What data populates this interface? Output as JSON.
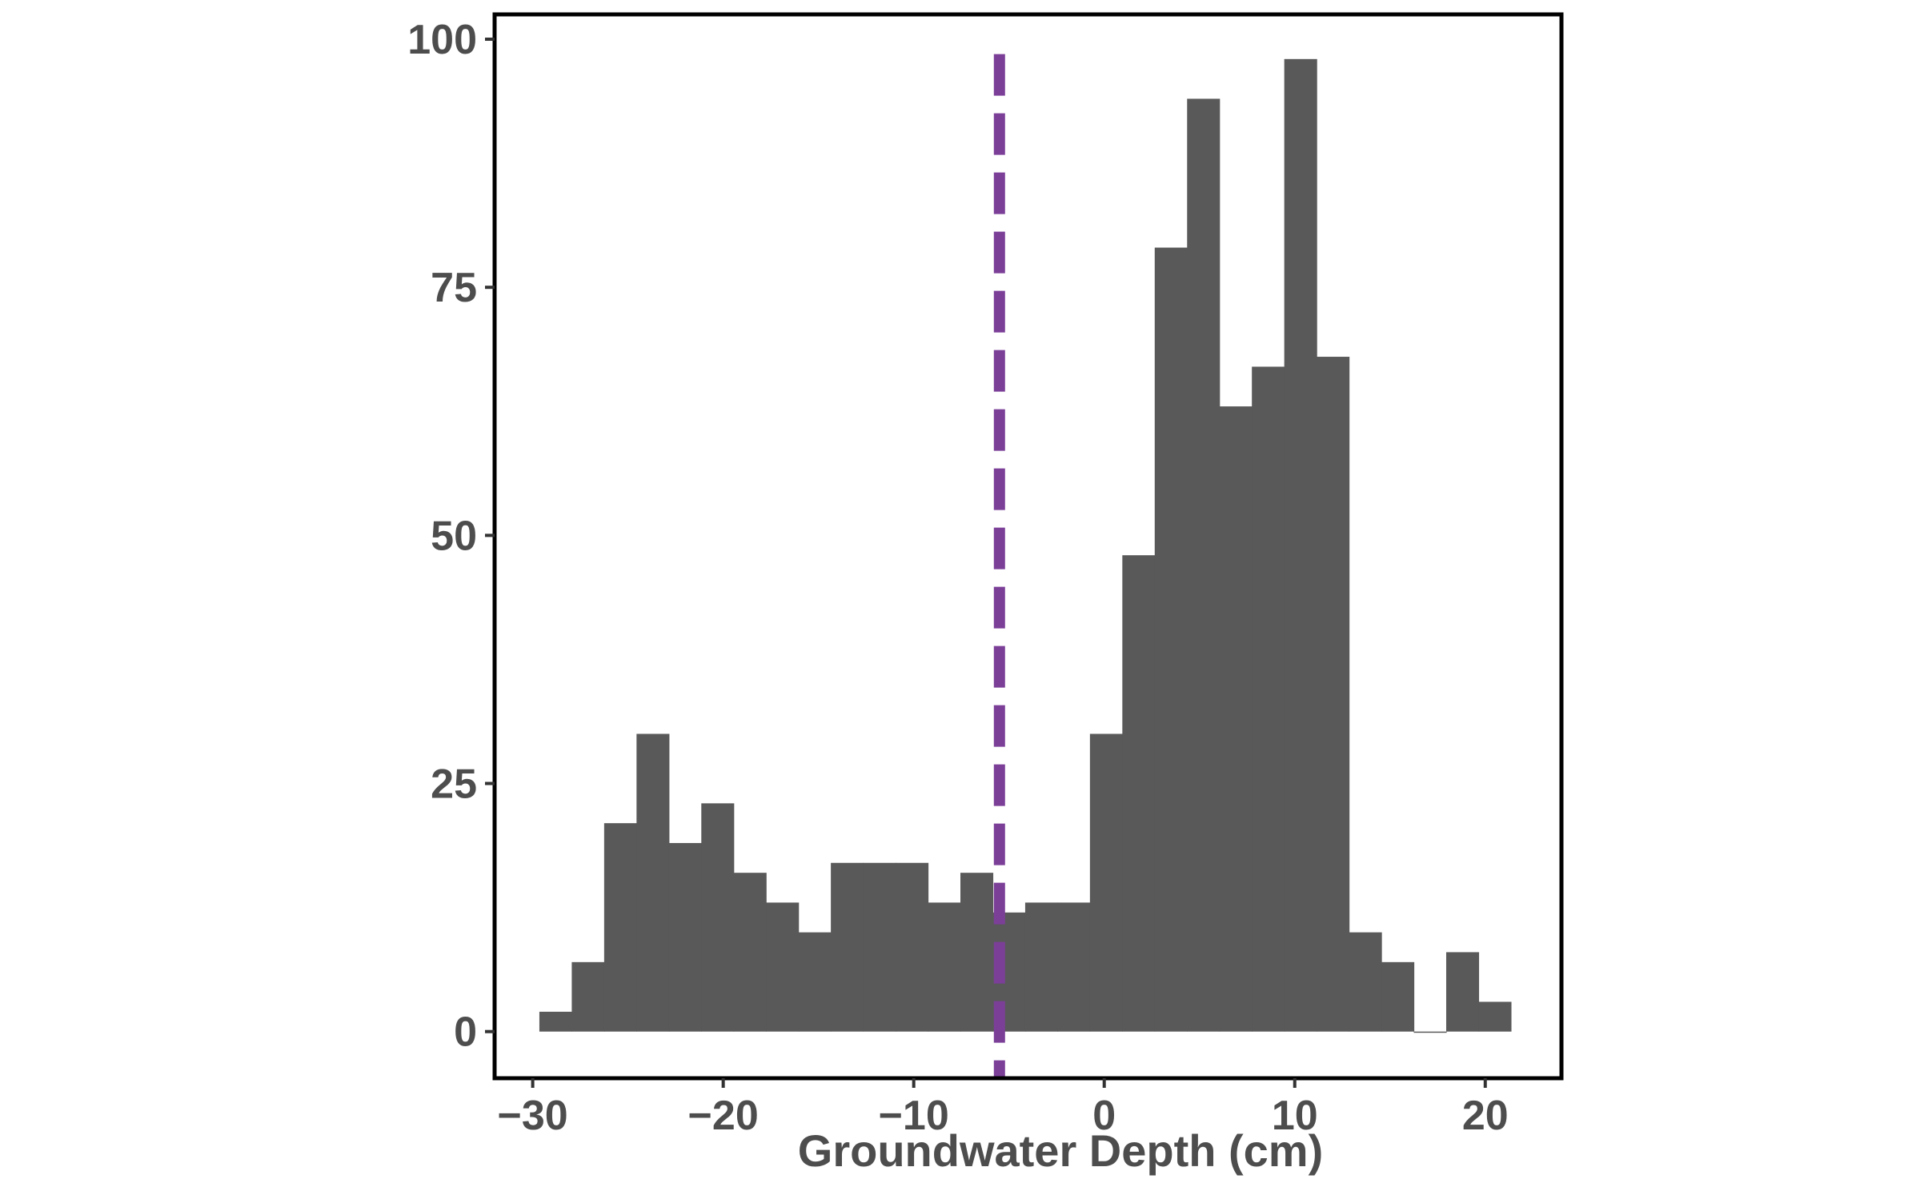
{
  "chart_data": {
    "type": "bar",
    "subtype": "histogram",
    "title": "",
    "xlabel": "Groundwater Depth (cm)",
    "ylabel": "",
    "xlim": [
      -32,
      24
    ],
    "ylim": [
      -4.7,
      102.5
    ],
    "xticks": [
      -30,
      -20,
      -10,
      0,
      10,
      20
    ],
    "xtick_labels": [
      "−30",
      "−20",
      "−10",
      "0",
      "10",
      "20"
    ],
    "yticks": [
      0,
      25,
      50,
      75,
      100
    ],
    "ytick_labels": [
      "0",
      "25",
      "50",
      "75",
      "100"
    ],
    "bin_width": 1.7,
    "bin_starts": [
      -29.65,
      -27.95,
      -26.25,
      -24.55,
      -22.85,
      -21.15,
      -19.45,
      -17.75,
      -16.05,
      -14.35,
      -12.65,
      -10.95,
      -9.25,
      -7.55,
      -5.85,
      -4.15,
      -2.45,
      -0.75,
      0.95,
      2.65,
      4.35,
      6.05,
      7.75,
      9.45,
      11.15,
      12.85,
      14.55,
      16.25,
      17.95,
      19.65
    ],
    "values": [
      2,
      7,
      21,
      30,
      19,
      23,
      16,
      13,
      10,
      17,
      17,
      17,
      13,
      16,
      12,
      13,
      13,
      30,
      48,
      79,
      94,
      63,
      67,
      98,
      68,
      10,
      7,
      0,
      8,
      3
    ],
    "reference_line": {
      "x": -5.5,
      "style": "dashed",
      "color": "#7B3F98"
    },
    "grid": false,
    "legend": "none",
    "colors": {
      "bars": "#595959",
      "frame": "#000000",
      "text": "#4d4d4d"
    }
  }
}
